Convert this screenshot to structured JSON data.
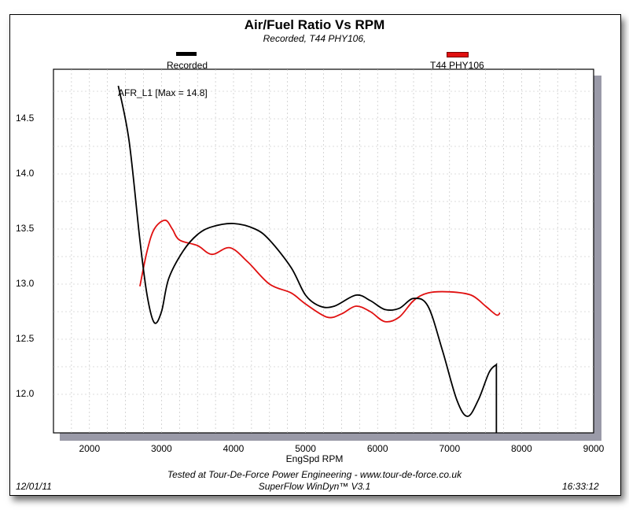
{
  "chart_data": {
    "type": "line",
    "title": "Air/Fuel Ratio Vs RPM",
    "subtitle": "Recorded, T44 PHY106,",
    "xlabel": "EngSpd RPM",
    "ylabel": "",
    "xlim": [
      1500,
      9000
    ],
    "ylim": [
      11.65,
      14.95
    ],
    "x_ticks": [
      2000,
      3000,
      4000,
      5000,
      6000,
      7000,
      8000,
      9000
    ],
    "y_ticks": [
      12.0,
      12.5,
      13.0,
      13.5,
      14.0,
      14.5
    ],
    "y_tick_labels": [
      "12.0",
      "12.5",
      "13.0",
      "13.5",
      "14.0",
      "14.5"
    ],
    "grid": true,
    "legend_placement": "top",
    "annotation": "AFR_L1 [Max = 14.8]",
    "series": [
      {
        "name": "Recorded",
        "color": "#000000",
        "x": [
          2400,
          2550,
          2700,
          2800,
          2900,
          3000,
          3100,
          3300,
          3500,
          3700,
          4000,
          4300,
          4500,
          4800,
          5000,
          5200,
          5400,
          5700,
          5900,
          6100,
          6300,
          6500,
          6700,
          6900,
          7100,
          7250,
          7400,
          7550,
          7650,
          7650
        ],
        "y": [
          14.8,
          14.3,
          13.4,
          12.9,
          12.65,
          12.75,
          13.05,
          13.3,
          13.45,
          13.52,
          13.55,
          13.5,
          13.4,
          13.15,
          12.9,
          12.8,
          12.8,
          12.9,
          12.85,
          12.77,
          12.78,
          12.87,
          12.8,
          12.4,
          11.95,
          11.8,
          11.95,
          12.2,
          12.27,
          11.65
        ]
      },
      {
        "name": "T44 PHY106",
        "color": "#e01010",
        "x": [
          2700,
          2800,
          2900,
          3050,
          3150,
          3250,
          3500,
          3700,
          3950,
          4200,
          4500,
          4800,
          5000,
          5300,
          5500,
          5700,
          5900,
          6100,
          6300,
          6500,
          6700,
          7000,
          7300,
          7500,
          7650,
          7700
        ],
        "y": [
          12.98,
          13.3,
          13.5,
          13.58,
          13.5,
          13.4,
          13.35,
          13.27,
          13.33,
          13.2,
          13.0,
          12.92,
          12.82,
          12.7,
          12.73,
          12.8,
          12.75,
          12.66,
          12.7,
          12.85,
          12.92,
          12.93,
          12.9,
          12.8,
          12.72,
          12.74
        ]
      }
    ]
  },
  "footer": {
    "credit": "Tested at Tour-De-Force Power Engineering - www.tour-de-force.co.uk",
    "software": "SuperFlow WinDyn™ V3.1",
    "date": "12/01/11",
    "time": "16:33:12"
  }
}
